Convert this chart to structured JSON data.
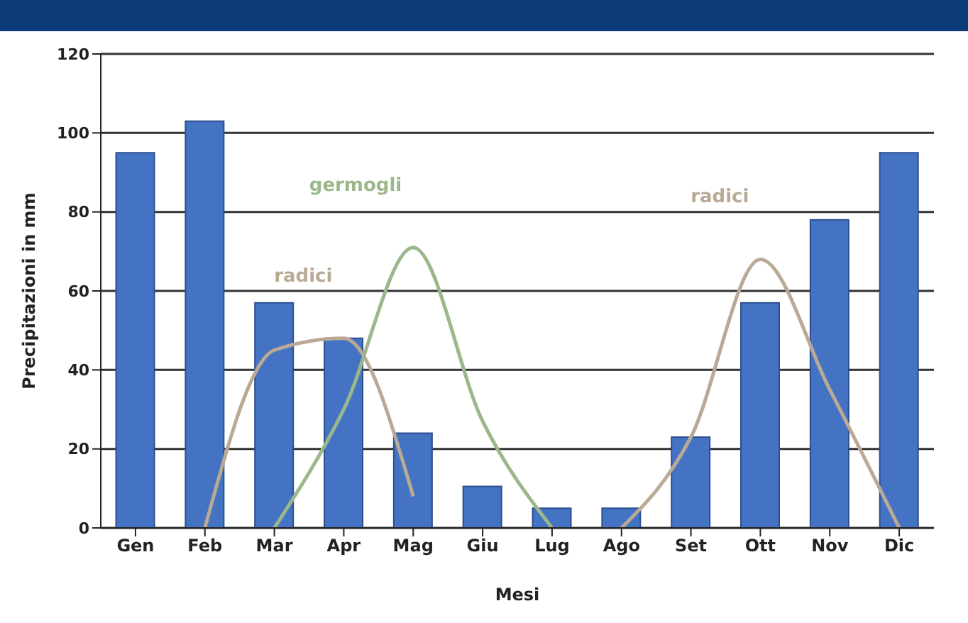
{
  "chart_data": {
    "type": "bar",
    "xlabel": "Mesi",
    "ylabel": "Precipitazioni in mm",
    "categories": [
      "Gen",
      "Feb",
      "Mar",
      "Apr",
      "Mag",
      "Giu",
      "Lug",
      "Ago",
      "Set",
      "Ott",
      "Nov",
      "Dic"
    ],
    "ylim": [
      0,
      120
    ],
    "yticks": [
      0,
      20,
      40,
      60,
      80,
      100,
      120
    ],
    "grid": "y",
    "legend": false,
    "series": [
      {
        "color": "#4473c4",
        "values": [
          95,
          103,
          57,
          48,
          24,
          10.5,
          5,
          5,
          23,
          57,
          78,
          95
        ]
      },
      {
        "type": "line",
        "name": "radici",
        "color": "#b9a995",
        "values": [
          null,
          0,
          45,
          48,
          8,
          null,
          null,
          null,
          null,
          null,
          null,
          null
        ]
      },
      {
        "type": "line",
        "name": "germogli",
        "color": "#9bb78c",
        "values": [
          null,
          null,
          0,
          30,
          71,
          27,
          0,
          null,
          null,
          null,
          null,
          null
        ]
      },
      {
        "type": "line",
        "name": "radici",
        "color": "#b9a995",
        "values": [
          null,
          null,
          null,
          null,
          null,
          null,
          null,
          0,
          23,
          68,
          35,
          0
        ]
      }
    ]
  }
}
